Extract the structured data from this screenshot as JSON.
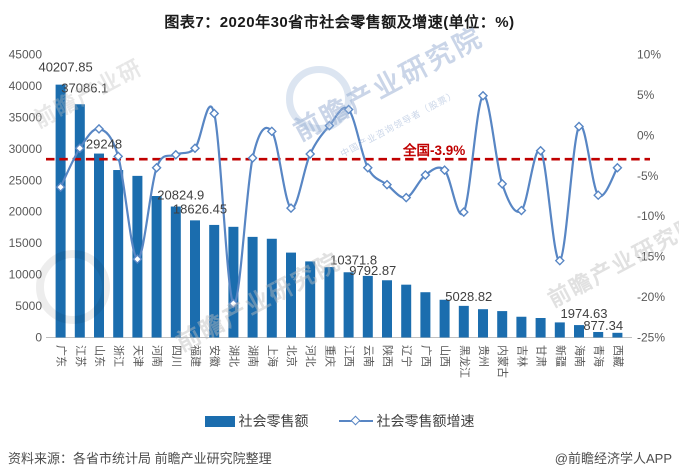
{
  "title": "图表7：2020年30省市社会零售额及增速(单位：%)",
  "legend": {
    "bar_label": "社会零售额",
    "line_label": "社会零售额增速"
  },
  "footer": {
    "source": "资料来源：各省市统计局 前瞻产业研究院整理",
    "credit": "@前瞻经济学人APP"
  },
  "watermarks": {
    "main": "前瞻产业研究院",
    "sub": "中国产业咨询领导者（股票）"
  },
  "colors": {
    "bar": "#1b6dae",
    "line": "#5886c4",
    "marker_fill": "#ffffff",
    "national": "#c00000",
    "title_text": "#1a1a1a",
    "axis_text": "#595959",
    "label_text": "#3f3f3f",
    "axis_line": "#bfbfbf",
    "legend_text": "#404040",
    "footer_text": "#4d4d4d",
    "watermark_blue": "#9fb4d6",
    "watermark_gray": "#bdbdbd"
  },
  "chart_data": {
    "type": "bar+line combo",
    "title": "图表7：2020年30省市社会零售额及增速(单位：%)",
    "grid": false,
    "legend_position": "bottom",
    "categories": [
      "广东",
      "江苏",
      "山东",
      "浙江",
      "天津",
      "河南",
      "四川",
      "福建",
      "安徽",
      "湖北",
      "湖南",
      "上海",
      "北京",
      "河北",
      "重庆",
      "江西",
      "云南",
      "陕西",
      "辽宁",
      "广西",
      "山西",
      "黑龙江",
      "贵州",
      "内蒙古",
      "吉林",
      "甘肃",
      "新疆",
      "海南",
      "青海",
      "西藏"
    ],
    "series": [
      {
        "name": "社会零售额",
        "type": "bar",
        "axis": "left",
        "unit": "亿元",
        "values": [
          40207.85,
          37086.1,
          29248,
          26630,
          25700,
          22500,
          20824.9,
          18626.45,
          17900,
          17600,
          16000,
          15700,
          13500,
          12100,
          11200,
          10371.8,
          9792.87,
          9100,
          8400,
          7200,
          6000,
          5028.82,
          4500,
          4200,
          3300,
          3100,
          2400,
          1974.63,
          877.34,
          746
        ]
      },
      {
        "name": "社会零售额增速",
        "type": "line",
        "axis": "right",
        "unit": "%",
        "values": [
          -6.4,
          -1.6,
          0.8,
          -2.6,
          -15.3,
          -4.0,
          -2.4,
          -1.6,
          2.7,
          -20.8,
          -2.8,
          0.5,
          -9.0,
          -2.3,
          1.2,
          3.2,
          -4.0,
          -6.1,
          -7.7,
          -4.9,
          -4.3,
          -9.5,
          4.9,
          -6.0,
          -9.3,
          -1.9,
          -15.5,
          1.1,
          -7.4,
          -4.0
        ]
      }
    ],
    "bar_value_labels": [
      {
        "index": 0,
        "text": "40207.85",
        "gap": 13
      },
      {
        "index": 1,
        "text": "37086.1",
        "gap": 12
      },
      {
        "index": 2,
        "text": "29248",
        "gap": 5
      },
      {
        "index": 6,
        "text": "20824.9",
        "gap": 7
      },
      {
        "index": 7,
        "text": "18626.45",
        "gap": 7
      },
      {
        "index": 15,
        "text": "10371.8",
        "gap": 8
      },
      {
        "index": 16,
        "text": "9792.87",
        "gap": 1
      },
      {
        "index": 21,
        "text": "5028.82",
        "gap": 5
      },
      {
        "index": 27,
        "text": "1974.63",
        "gap": 7
      },
      {
        "index": 28,
        "text": "877.34",
        "gap": 2
      }
    ],
    "left_axis": {
      "min": 0,
      "max": 45000,
      "ticks": [
        "45000",
        "40000",
        "35000",
        "30000",
        "25000",
        "20000",
        "15000",
        "10000",
        "5000",
        "0"
      ]
    },
    "right_axis": {
      "min": -25,
      "max": 10,
      "ticks": [
        "10%",
        "5%",
        "0%",
        "-5%",
        "-10%",
        "-15%",
        "-20%",
        "-25%"
      ]
    },
    "national_line": {
      "label": "全国-3.9%",
      "value_pct": -3.9,
      "draw_at_pct": -2.95
    }
  }
}
